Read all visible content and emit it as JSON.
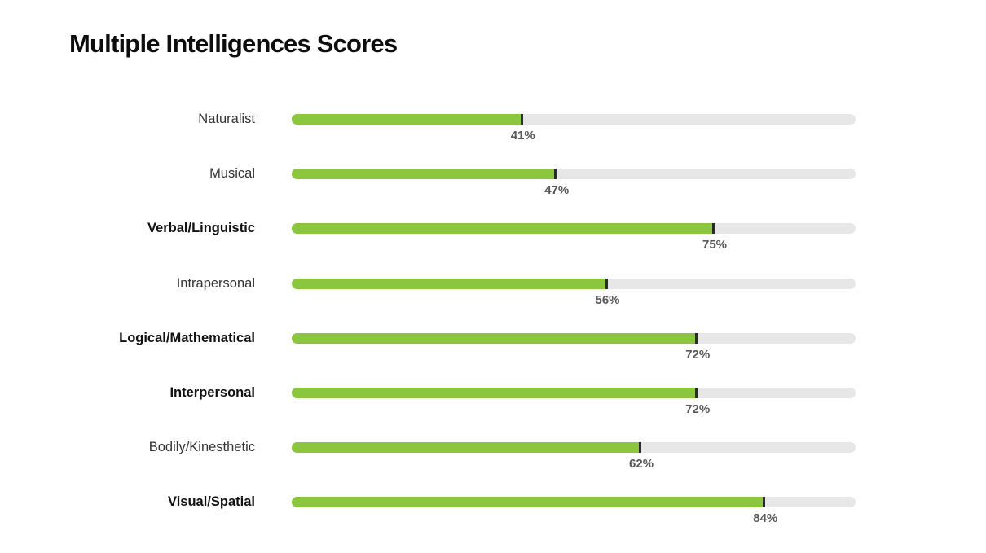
{
  "title": "Multiple Intelligences Scores",
  "chart_data": {
    "type": "bar",
    "orientation": "horizontal",
    "title": "Multiple Intelligences Scores",
    "xlabel": "",
    "ylabel": "",
    "xlim": [
      0,
      100
    ],
    "grid": false,
    "legend": null,
    "categories": [
      "Naturalist",
      "Musical",
      "Verbal/Linguistic",
      "Intrapersonal",
      "Logical/Mathematical",
      "Interpersonal",
      "Bodily/Kinesthetic",
      "Visual/Spatial"
    ],
    "values": [
      41,
      47,
      75,
      56,
      72,
      72,
      62,
      84
    ],
    "value_labels": [
      "41%",
      "47%",
      "75%",
      "56%",
      "72%",
      "72%",
      "62%",
      "84%"
    ],
    "bold_categories": [
      false,
      false,
      true,
      false,
      true,
      true,
      false,
      true
    ],
    "colors": {
      "bar_fill": "#8cc63f",
      "track": "#e7e7e7",
      "end_marker": "#2b2b2b",
      "value_text": "#58585a",
      "label_regular": "#333333",
      "label_bold": "#111111",
      "title": "#0d0d0d",
      "background": "#ffffff"
    }
  }
}
